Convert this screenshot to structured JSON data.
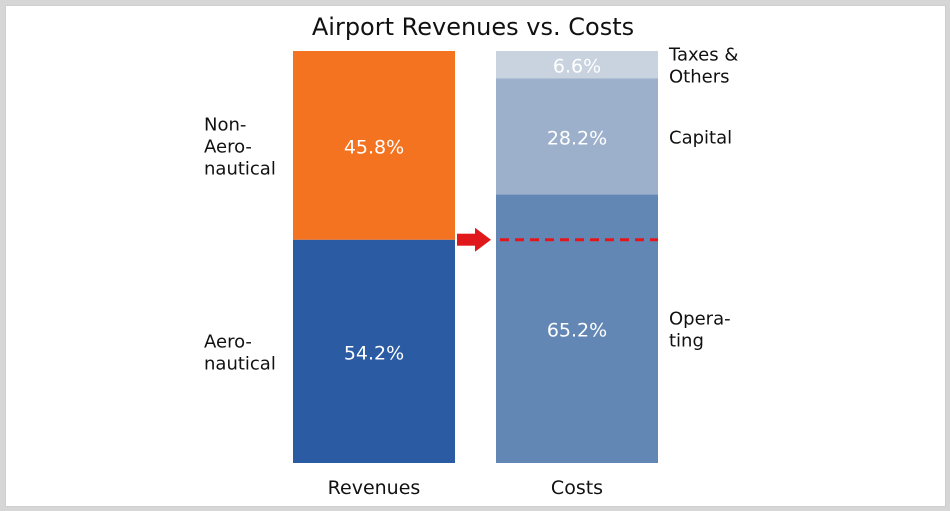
{
  "chart_data": {
    "type": "bar",
    "stacked": true,
    "title": "Airport Revenues vs. Costs",
    "categories": [
      "Revenues",
      "Costs"
    ],
    "ylim": [
      0,
      100
    ],
    "series": [
      {
        "category": "Revenues",
        "segments": [
          {
            "name": "Aero-\nnautical",
            "value": 54.2,
            "label": "54.2%",
            "color": "#2b5ba3"
          },
          {
            "name": "Non-\nAero-\nnautical",
            "value": 45.8,
            "label": "45.8%",
            "color": "#f47320"
          }
        ]
      },
      {
        "category": "Costs",
        "segments": [
          {
            "name": "Opera-\nting",
            "value": 65.2,
            "label": "65.2%",
            "color": "#6387b5"
          },
          {
            "name": "Capital",
            "value": 28.2,
            "label": "28.2%",
            "color": "#9db0cb"
          },
          {
            "name": "Taxes &\nOthers",
            "value": 6.6,
            "label": "6.6%",
            "color": "#c9d3e0"
          }
        ]
      }
    ],
    "annotations": {
      "arrow_color": "#e0181b",
      "dashed_line_at_value": 54.2,
      "dashed_line_color": "#e0181b"
    }
  }
}
